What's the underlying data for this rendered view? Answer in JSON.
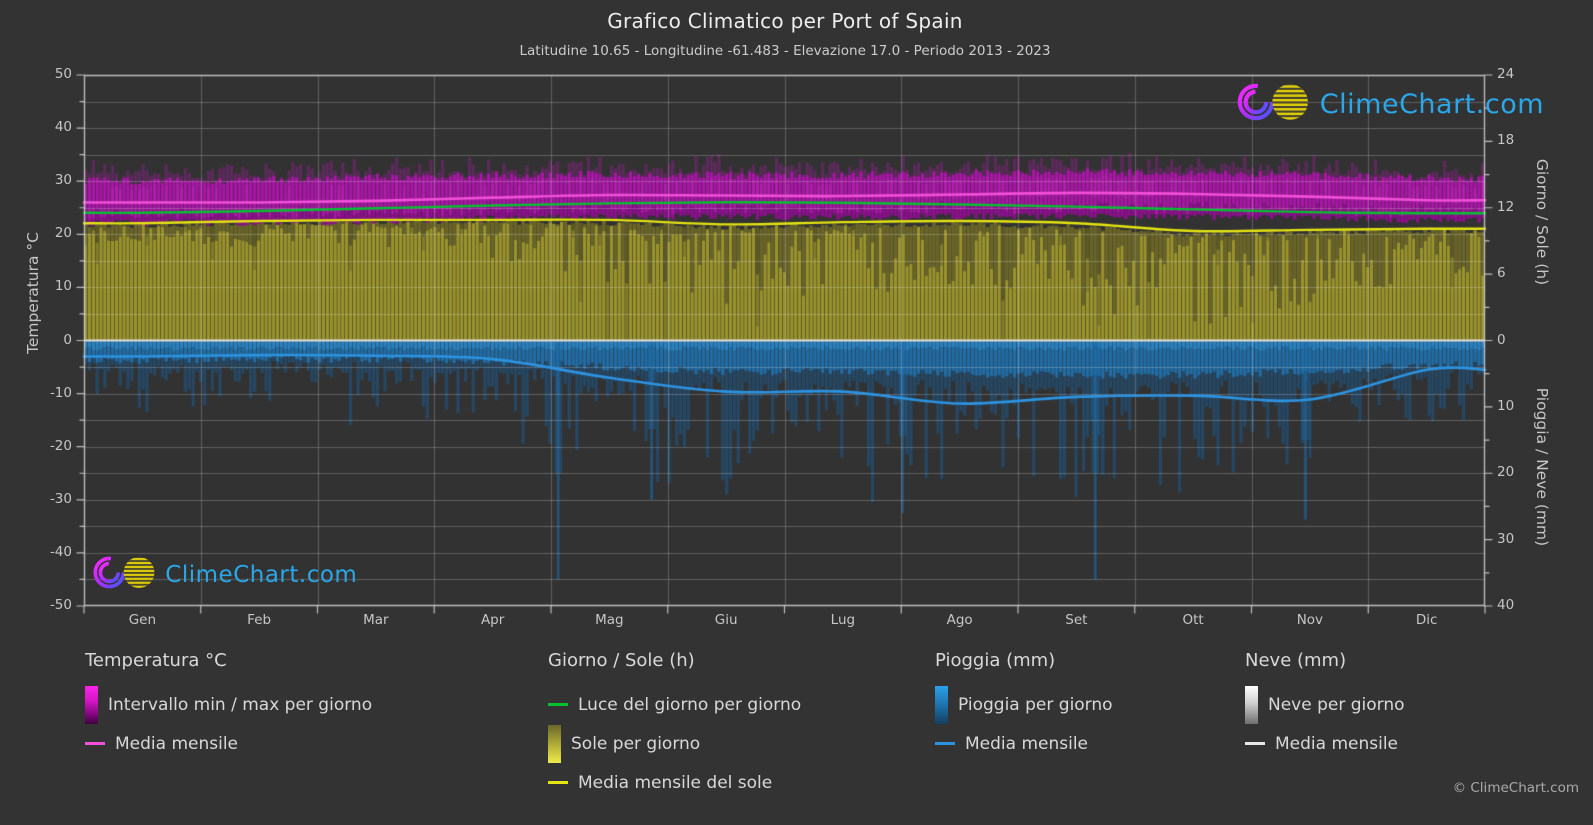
{
  "header": {
    "title": "Grafico Climatico per Port of Spain",
    "subtitle": "Latitudine 10.65 - Longitudine -61.483 - Elevazione 17.0 - Periodo 2013 - 2023"
  },
  "watermark": {
    "text": "ClimeChart.com"
  },
  "footer": {
    "copyright": "© ClimeChart.com"
  },
  "axes": {
    "left": {
      "label": "Temperatura °C",
      "ticks": [
        50,
        40,
        30,
        20,
        10,
        0,
        -10,
        -20,
        -30,
        -40,
        -50
      ],
      "range": [
        -50,
        50
      ]
    },
    "right_sun": {
      "label": "Giorno / Sole (h)",
      "ticks": [
        24,
        18,
        12,
        6,
        0
      ],
      "range": [
        0,
        24
      ]
    },
    "right_rain": {
      "label": "Pioggia / Neve (mm)",
      "ticks": [
        10,
        20,
        30,
        40
      ],
      "range": [
        0,
        40
      ]
    },
    "x": {
      "months": [
        "Gen",
        "Feb",
        "Mar",
        "Apr",
        "Mag",
        "Giu",
        "Lug",
        "Ago",
        "Set",
        "Ott",
        "Nov",
        "Dic"
      ]
    }
  },
  "colors": {
    "background": "#333333",
    "grid": "rgba(255,255,255,0.22)",
    "zero_line": "#e4e4e4",
    "spine": "rgba(214,214,214,0.85)",
    "temp_band": "#b712b4",
    "temp_mean_line": "#f24fd8",
    "daylight_line": "#05c12f",
    "sun_area": "#a0992b",
    "sun_mean_line": "#e4e412",
    "rain_bar": "#1f77b4",
    "rain_mean_line": "#2d93e0",
    "snow_mean_line": "#e8e8e8",
    "logo_text": "#2aa7e8"
  },
  "chart_data": {
    "type": "area",
    "categories": [
      "Gen",
      "Feb",
      "Mar",
      "Apr",
      "Mag",
      "Giu",
      "Lug",
      "Ago",
      "Set",
      "Ott",
      "Nov",
      "Dic"
    ],
    "series": [
      {
        "name": "Media mensile temperatura (°C)",
        "values": [
          26.0,
          26.0,
          26.3,
          26.9,
          27.4,
          27.3,
          27.2,
          27.5,
          27.8,
          27.6,
          27.1,
          26.4
        ]
      },
      {
        "name": "Minimo giornaliero medio (°C)",
        "values": [
          22.8,
          22.8,
          23.0,
          23.6,
          24.0,
          23.9,
          23.8,
          24.0,
          24.1,
          23.9,
          23.7,
          23.2
        ]
      },
      {
        "name": "Massimo giornaliero medio (°C)",
        "values": [
          29.8,
          30.0,
          30.5,
          30.8,
          31.0,
          30.8,
          30.8,
          31.2,
          31.5,
          31.2,
          30.8,
          30.2
        ]
      },
      {
        "name": "Luce del giorno per giorno (h)",
        "values": [
          11.55,
          11.7,
          11.95,
          12.2,
          12.4,
          12.5,
          12.45,
          12.3,
          12.1,
          11.85,
          11.6,
          11.5
        ]
      },
      {
        "name": "Media mensile del sole (h)",
        "values": [
          10.6,
          10.8,
          10.9,
          10.9,
          10.9,
          10.5,
          10.7,
          10.8,
          10.6,
          9.9,
          10.0,
          10.1
        ]
      },
      {
        "name": "Sole per giorno - bordo area (h)",
        "values": [
          10.4,
          10.6,
          10.7,
          10.7,
          10.6,
          10.2,
          10.4,
          10.5,
          10.3,
          9.6,
          9.7,
          9.9
        ]
      },
      {
        "name": "Media mensile pioggia (mm/giorno)",
        "values": [
          2.4,
          2.2,
          2.3,
          2.8,
          5.6,
          7.7,
          7.7,
          9.5,
          8.5,
          8.3,
          8.9,
          4.4
        ]
      },
      {
        "name": "Neve (mm)",
        "values": [
          0,
          0,
          0,
          0,
          0,
          0,
          0,
          0,
          0,
          0,
          0,
          0
        ]
      }
    ],
    "rain_extreme_days": [
      {
        "month_frac": 4.05,
        "mm": 36
      },
      {
        "month_frac": 4.85,
        "mm": 24
      },
      {
        "month_frac": 7.0,
        "mm": 26
      },
      {
        "month_frac": 8.65,
        "mm": 36
      },
      {
        "month_frac": 10.45,
        "mm": 27
      }
    ],
    "title": "Grafico Climatico per Port of Spain",
    "xlabel": "",
    "ylabel_left": "Temperatura °C",
    "ylabel_right_top": "Giorno / Sole (h)",
    "ylabel_right_bottom": "Pioggia / Neve (mm)",
    "ylim_temp": [
      -50,
      50
    ],
    "ylim_sun": [
      0,
      24
    ],
    "ylim_rain": [
      0,
      40
    ],
    "grid": true,
    "legend_position": "bottom"
  },
  "legend": {
    "groups": [
      {
        "title": "Temperatura °C",
        "items": [
          {
            "kind": "gradient",
            "swatch": "g-temp",
            "label": "Intervallo min / max per giorno"
          },
          {
            "kind": "line",
            "color": "#f24fd8",
            "label": "Media mensile"
          }
        ]
      },
      {
        "title": "Giorno / Sole (h)",
        "items": [
          {
            "kind": "line",
            "color": "#05c12f",
            "label": "Luce del giorno per giorno"
          },
          {
            "kind": "gradient",
            "swatch": "g-sun",
            "label": "Sole per giorno"
          },
          {
            "kind": "line",
            "color": "#e4e412",
            "label": "Media mensile del sole"
          }
        ]
      },
      {
        "title": "Pioggia (mm)",
        "items": [
          {
            "kind": "gradient",
            "swatch": "g-rain",
            "label": "Pioggia per giorno"
          },
          {
            "kind": "line",
            "color": "#2d93e0",
            "label": "Media mensile"
          }
        ]
      },
      {
        "title": "Neve (mm)",
        "items": [
          {
            "kind": "gradient",
            "swatch": "g-snow",
            "label": "Neve per giorno"
          },
          {
            "kind": "line",
            "color": "#e8e8e8",
            "label": "Media mensile"
          }
        ]
      }
    ]
  }
}
